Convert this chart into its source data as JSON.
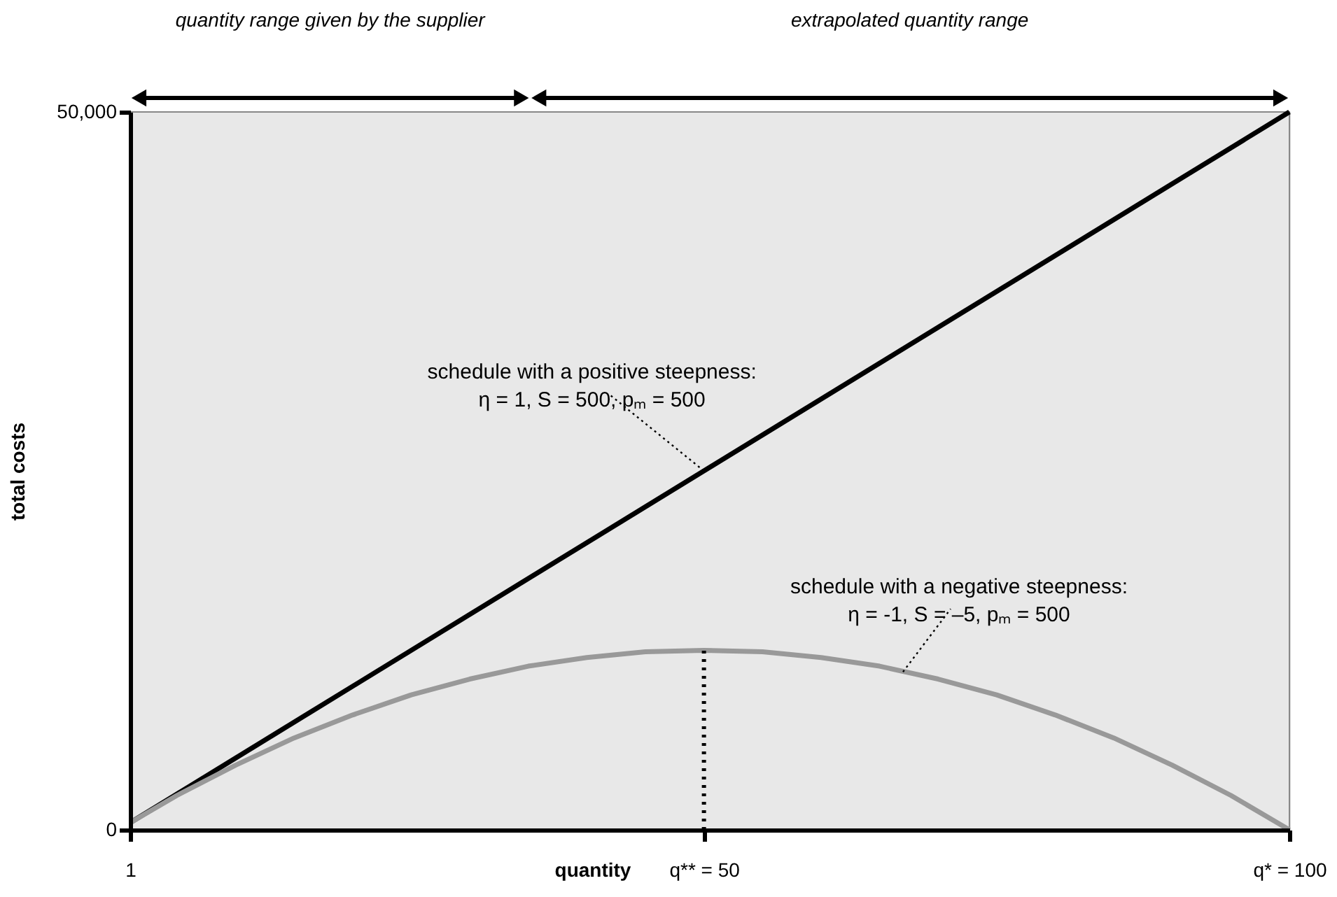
{
  "chart_data": {
    "type": "line",
    "xlabel": "quantity",
    "ylabel": "total costs",
    "series": [
      {
        "color": "#000000",
        "x": [
          1,
          100
        ],
        "values": [
          500,
          50000
        ]
      },
      {
        "color": "#999999",
        "x": [
          1,
          5,
          10,
          15,
          20,
          25,
          30,
          35,
          40,
          45,
          50,
          55,
          60,
          65,
          70,
          75,
          80,
          85,
          90,
          95,
          100
        ],
        "values": [
          500,
          2400,
          4500,
          6400,
          8000,
          9400,
          10500,
          11400,
          12000,
          12400,
          12500,
          12400,
          12000,
          11400,
          10500,
          9400,
          8000,
          6400,
          4500,
          2400,
          0
        ]
      }
    ],
    "xlim": [
      1,
      100
    ],
    "xticks": [
      1,
      {
        "value": 50,
        "label": "q** = 50"
      },
      {
        "value": 100,
        "label": "q* = 100"
      }
    ],
    "ylim": [
      0,
      50000
    ],
    "yticks": [
      0,
      {
        "value": 50000,
        "label": "50,000"
      }
    ],
    "ref_lines": [
      {
        "axis": "x",
        "value": 50,
        "line_style": "dotted",
        "color": "#000000"
      }
    ],
    "annotations": [
      "quantity range given by the supplier",
      "extrapolated quantity range",
      {
        "text": "schedule with a positive steepness:\nη = 1, S = 500, pₘ = 500",
        "x": 50,
        "y": 25000
      },
      {
        "text": "schedule with a negative steepness:\nη = -1, S = –5, pₘ = 500",
        "x": 67,
        "y": 11000
      }
    ],
    "grid": false,
    "marker": "none",
    "line_style": "solid"
  }
}
